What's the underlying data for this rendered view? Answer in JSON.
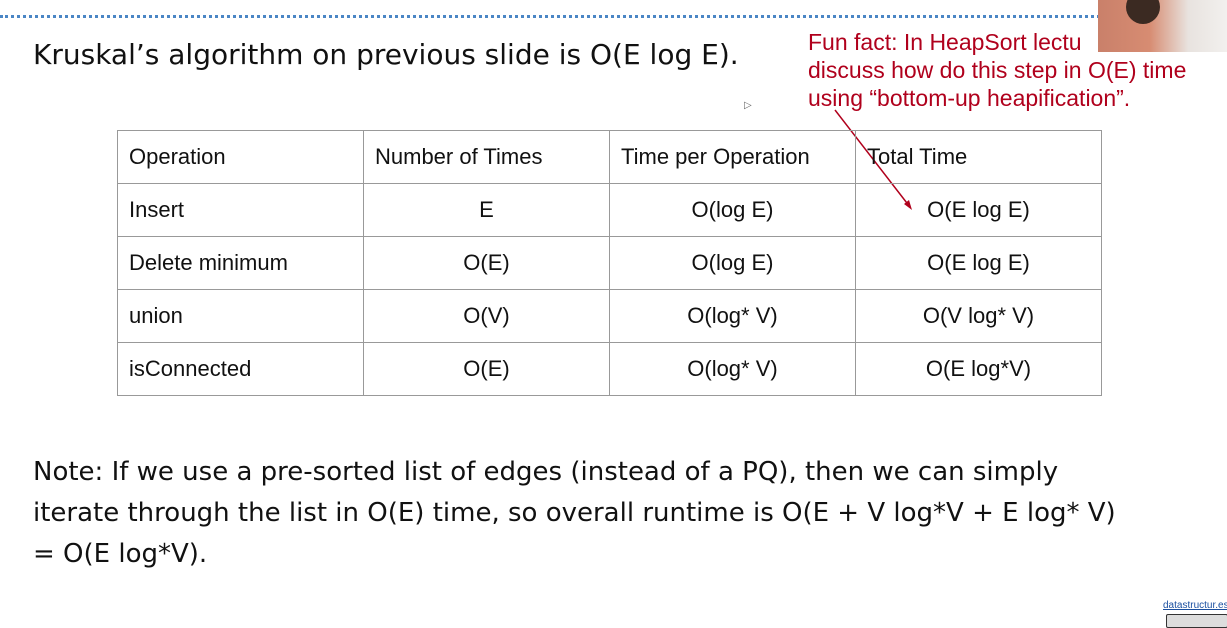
{
  "title": "Kruskal’s algorithm on previous slide is O(E log E).",
  "fun_fact": [
    "Fun fact: In HeapSort lectu",
    "discuss how do this step in O(E) time",
    "using “bottom-up heapification”."
  ],
  "annotation_color": "#b0001c",
  "table": {
    "headers": [
      "Operation",
      "Number of Times",
      "Time per Operation",
      "Total Time"
    ],
    "rows": [
      [
        "Insert",
        "E",
        "O(log E)",
        "O(E log E)"
      ],
      [
        "Delete minimum",
        "O(E)",
        "O(log E)",
        "O(E log E)"
      ],
      [
        "union",
        "O(V)",
        "O(log* V)",
        "O(V log* V)"
      ],
      [
        "isConnected",
        "O(E)",
        "O(log* V)",
        "O(E log*V)"
      ]
    ]
  },
  "note": [
    "Note: If we use a pre-sorted list of edges (instead of a PQ), then we can simply",
    "iterate through the list in O(E) time, so overall runtime is O(E + V log*V + E log* V)",
    "= O(E log*V)."
  ],
  "footer_link": "datastructur.es"
}
